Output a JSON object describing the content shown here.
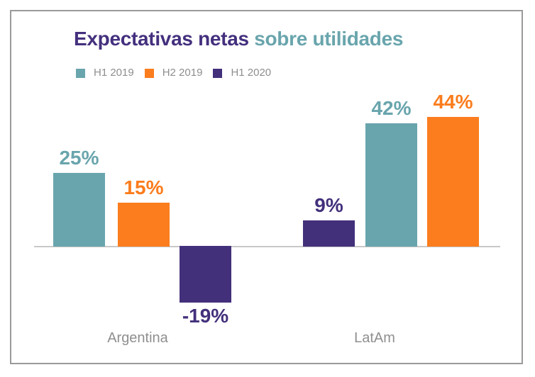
{
  "title": {
    "part1": "Expectativas netas",
    "part2": "sobre utilidades"
  },
  "colors": {
    "H1 2019": "#69A5AD",
    "H2 2019": "#FB7D1E",
    "H1 2020": "#43307B",
    "title_primary": "#44307E",
    "title_secondary": "#69A5AD",
    "axis_line": "#C8C8C8",
    "muted_text": "#8E8E8E",
    "frame_border": "#9A9A9A"
  },
  "legend": [
    {
      "label": "H1 2019",
      "color": "#69A5AD"
    },
    {
      "label": "H2 2019",
      "color": "#FB7D1E"
    },
    {
      "label": "H1 2020",
      "color": "#43307B"
    }
  ],
  "chart_data": {
    "type": "bar",
    "title": "Expectativas netas sobre utilidades",
    "unit": "%",
    "categories": [
      "Argentina",
      "LatAm"
    ],
    "series": [
      {
        "name": "H1 2019",
        "values": [
          25,
          42
        ]
      },
      {
        "name": "H2 2019",
        "values": [
          15,
          44
        ]
      },
      {
        "name": "H1 2020",
        "values": [
          -19,
          9
        ]
      }
    ],
    "bars": [
      {
        "group": "Argentina",
        "series": "H1 2019",
        "value": 25,
        "label": "25%"
      },
      {
        "group": "Argentina",
        "series": "H2 2019",
        "value": 15,
        "label": "15%"
      },
      {
        "group": "Argentina",
        "series": "H1 2020",
        "value": -19,
        "label": "-19%"
      },
      {
        "group": "LatAm",
        "series": "H1 2020",
        "value": 9,
        "label": "9%"
      },
      {
        "group": "LatAm",
        "series": "H1 2019",
        "value": 42,
        "label": "42%"
      },
      {
        "group": "LatAm",
        "series": "H2 2019",
        "value": 44,
        "label": "44%"
      }
    ],
    "ylim": [
      -25,
      50
    ],
    "grid": false,
    "legend_position": "top-left",
    "value_labels": true
  }
}
